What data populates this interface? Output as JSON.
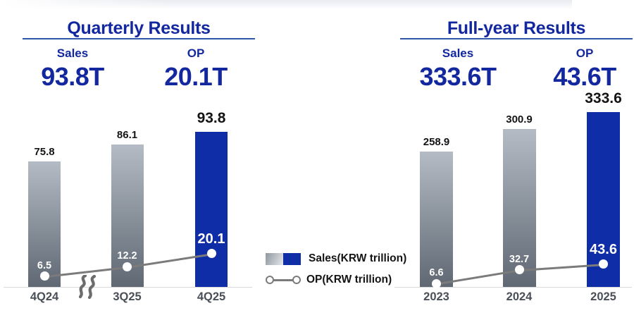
{
  "panels": [
    {
      "title": "Quarterly Results",
      "summary": {
        "sales_label": "Sales",
        "sales_value": "93.8T",
        "op_label": "OP",
        "op_value": "20.1T"
      }
    },
    {
      "title": "Full-year Results",
      "summary": {
        "sales_label": "Sales",
        "sales_value": "333.6T",
        "op_label": "OP",
        "op_value": "43.6T"
      }
    }
  ],
  "legend": {
    "sales_label": "Sales(KRW trillion)",
    "op_label": "OP(KRW trillion)"
  },
  "colors": {
    "accent_blue": "#13289e",
    "bar_blue": "#0e2da6",
    "bar_gray_top": "#b4bbc4",
    "bar_gray_bottom": "#5f6873",
    "op_line_gray": "#7b7b7b",
    "axis_gray": "#d9d9d9",
    "x_label_gray": "#4a4f57"
  },
  "chart_data": [
    {
      "type": "bar",
      "title": "Quarterly Results",
      "categories": [
        "4Q24",
        "3Q25",
        "4Q25"
      ],
      "series": [
        {
          "name": "Sales(KRW trillion)",
          "type": "bar",
          "values": [
            75.8,
            86.1,
            93.8
          ]
        },
        {
          "name": "OP(KRW trillion)",
          "type": "line",
          "values": [
            6.5,
            12.2,
            20.1
          ]
        }
      ],
      "highlight_index": 2,
      "axis_break_between": [
        "4Q24",
        "3Q25"
      ],
      "unit": "KRW trillion",
      "grid": false,
      "legend_position": "bottom-center"
    },
    {
      "type": "bar",
      "title": "Full-year Results",
      "categories": [
        "2023",
        "2024",
        "2025"
      ],
      "series": [
        {
          "name": "Sales(KRW trillion)",
          "type": "bar",
          "values": [
            258.9,
            300.9,
            333.6
          ]
        },
        {
          "name": "OP(KRW trillion)",
          "type": "line",
          "values": [
            6.6,
            32.7,
            43.6
          ]
        }
      ],
      "highlight_index": 2,
      "unit": "KRW trillion",
      "grid": false,
      "legend_position": "bottom-center"
    }
  ]
}
